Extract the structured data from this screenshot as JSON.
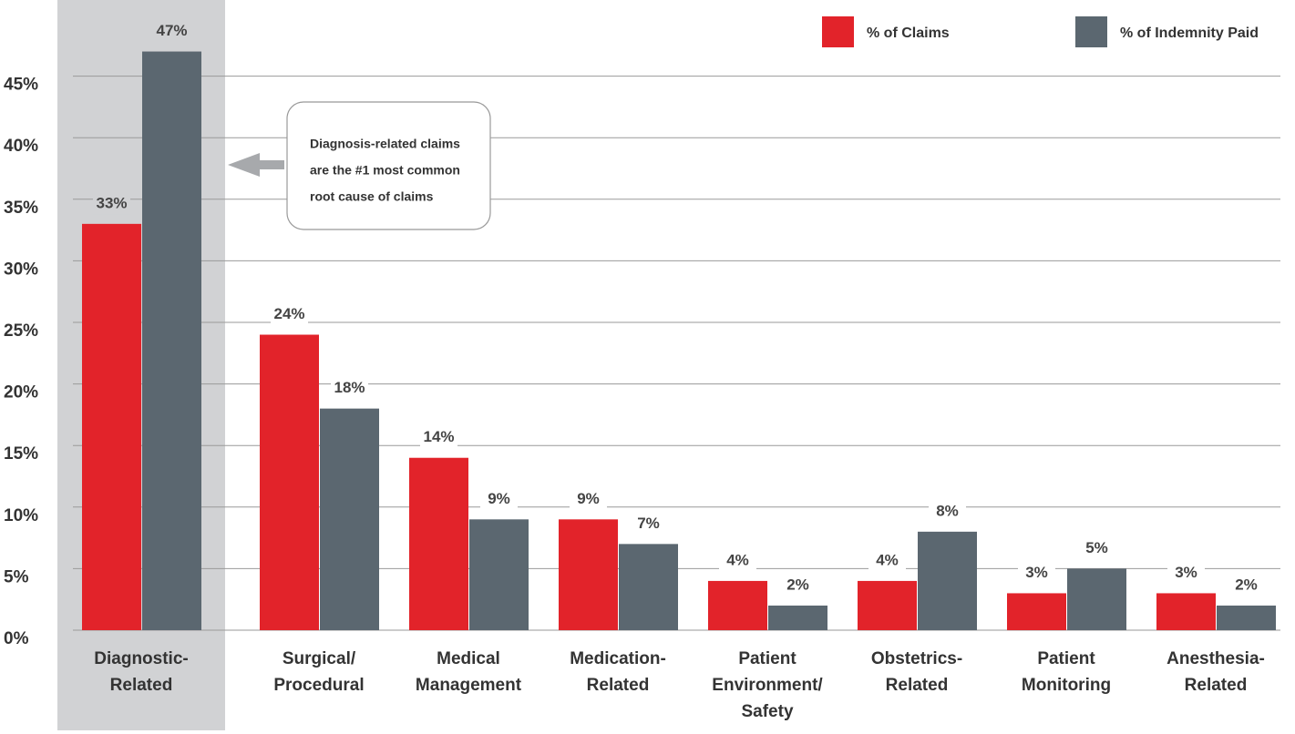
{
  "chart_data": {
    "type": "bar",
    "categories": [
      [
        "Diagnostic-",
        "Related"
      ],
      [
        "Surgical/",
        "Procedural"
      ],
      [
        "Medical",
        "Management"
      ],
      [
        "Medication-",
        "Related"
      ],
      [
        "Patient",
        "Environment/",
        "Safety"
      ],
      [
        "Obstetrics-",
        "Related"
      ],
      [
        "Patient",
        "Monitoring"
      ],
      [
        "Anesthesia-",
        "Related"
      ]
    ],
    "series": [
      {
        "name": "% of Claims",
        "color": "#e2232a",
        "values": [
          33,
          24,
          14,
          9,
          4,
          4,
          3,
          3
        ],
        "value_labels": [
          "33%",
          "24%",
          "14%",
          "9%",
          "4%",
          "4%",
          "3%",
          "3%"
        ]
      },
      {
        "name": "% of Indemnity Paid",
        "color": "#5b6770",
        "values": [
          47,
          18,
          9,
          7,
          2,
          8,
          5,
          2
        ],
        "value_labels": [
          "47%",
          "18%",
          "9%",
          "7%",
          "2%",
          "8%",
          "5%",
          "2%"
        ]
      }
    ],
    "ylim": [
      0,
      50
    ],
    "yticks": [
      {
        "value": 0,
        "label": "0%"
      },
      {
        "value": 5,
        "label": "5%"
      },
      {
        "value": 10,
        "label": "10%"
      },
      {
        "value": 15,
        "label": "15%"
      },
      {
        "value": 20,
        "label": "20%"
      },
      {
        "value": 25,
        "label": "25%"
      },
      {
        "value": 30,
        "label": "30%"
      },
      {
        "value": 35,
        "label": "35%"
      },
      {
        "value": 40,
        "label": "40%"
      },
      {
        "value": 45,
        "label": "45%"
      }
    ],
    "grid": true,
    "legend": "top-right",
    "annotation": [
      "Diagnosis-related claims",
      "are the #1 most common",
      "root cause of claims"
    ]
  }
}
